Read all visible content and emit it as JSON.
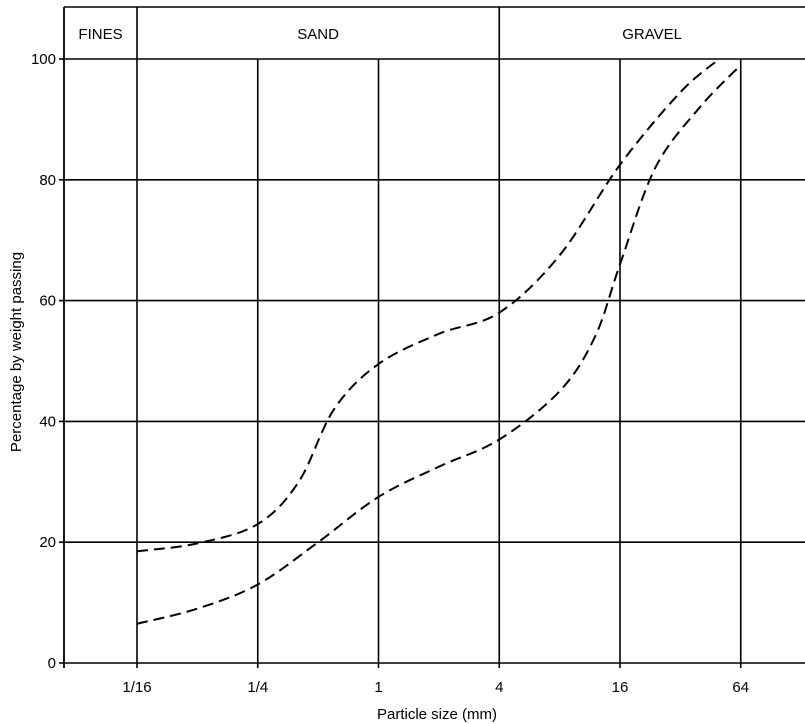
{
  "chart_data": {
    "type": "line",
    "ylabel": "Percentage by weight passing",
    "xlabel": "Particle size (mm)",
    "x_ticks": [
      "1/16",
      "1/4",
      "1",
      "4",
      "16",
      "64"
    ],
    "x_tick_values": [
      0.0625,
      0.25,
      1,
      4,
      16,
      64
    ],
    "x_scale": "log",
    "xlim": [
      0.0625,
      128
    ],
    "ylim": [
      0,
      100
    ],
    "y_ticks": [
      0,
      20,
      40,
      60,
      80,
      100
    ],
    "grid": true,
    "zones": [
      {
        "label": "FINES",
        "from": 0.0156,
        "to": 0.0625
      },
      {
        "label": "SAND",
        "from": 0.0625,
        "to": 4
      },
      {
        "label": "GRAVEL",
        "from": 4,
        "to": 128
      }
    ],
    "series": [
      {
        "style": "dashed",
        "x": [
          0.0625,
          0.125,
          0.25,
          0.4,
          0.6,
          1,
          2,
          4,
          8,
          16,
          32,
          50
        ],
        "y": [
          18.5,
          19.8,
          23,
          30,
          42,
          49.5,
          54.5,
          58,
          67.5,
          82.5,
          94.5,
          100
        ]
      },
      {
        "style": "dashed",
        "x": [
          0.0625,
          0.125,
          0.25,
          0.5,
          1,
          2,
          4,
          8,
          12,
          16,
          24,
          40,
          64
        ],
        "y": [
          6.5,
          9,
          13,
          20,
          27.5,
          32.5,
          37,
          45,
          54,
          66,
          82,
          92,
          99
        ]
      }
    ]
  }
}
